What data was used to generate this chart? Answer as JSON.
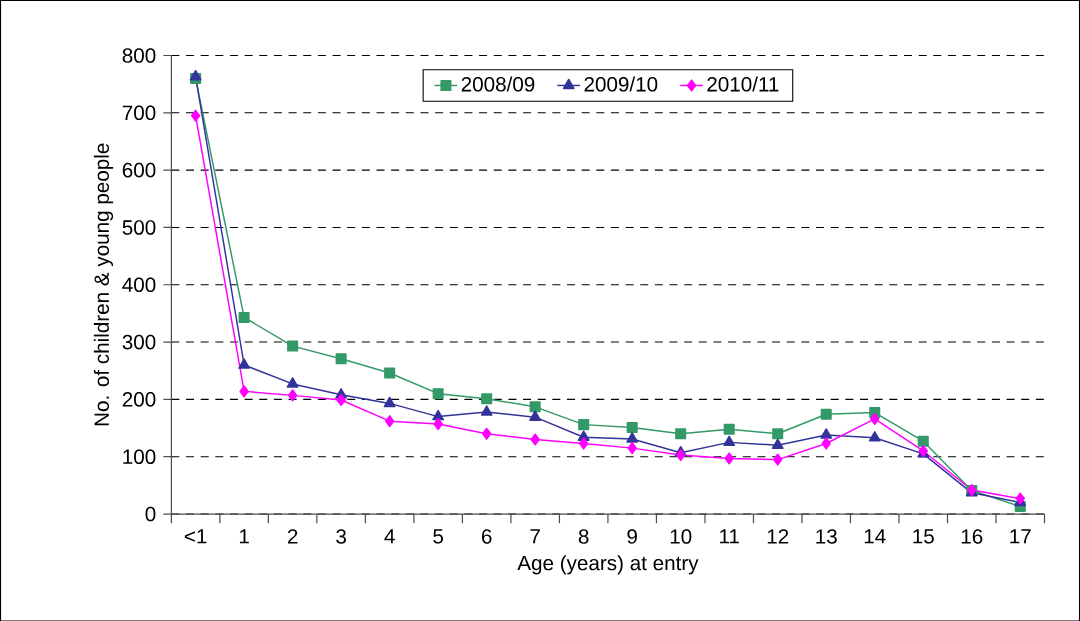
{
  "chart_data": {
    "type": "line",
    "xlabel": "Age (years) at entry",
    "ylabel": "No. of children & young people",
    "categories": [
      "<1",
      "1",
      "2",
      "3",
      "4",
      "5",
      "6",
      "7",
      "8",
      "9",
      "10",
      "11",
      "12",
      "13",
      "14",
      "15",
      "16",
      "17"
    ],
    "series": [
      {
        "name": "2008/09",
        "color": "#339966",
        "marker": "square",
        "values": [
          760,
          343,
          293,
          271,
          246,
          210,
          201,
          187,
          156,
          151,
          140,
          148,
          140,
          174,
          177,
          127,
          41,
          13
        ]
      },
      {
        "name": "2009/10",
        "color": "#333399",
        "marker": "triangle",
        "values": [
          763,
          260,
          227,
          208,
          193,
          170,
          178,
          169,
          134,
          131,
          107,
          125,
          120,
          138,
          133,
          105,
          37,
          20
        ]
      },
      {
        "name": "2010/11",
        "color": "#ff00ff",
        "marker": "diamond",
        "values": [
          695,
          214,
          207,
          199,
          162,
          157,
          140,
          130,
          123,
          115,
          103,
          97,
          95,
          123,
          166,
          110,
          42,
          27
        ]
      }
    ],
    "ylim": [
      0,
      800
    ],
    "yticks": [
      0,
      100,
      200,
      300,
      400,
      500,
      600,
      700,
      800
    ],
    "grid": "y",
    "legend": "top",
    "line_style": "solid"
  }
}
